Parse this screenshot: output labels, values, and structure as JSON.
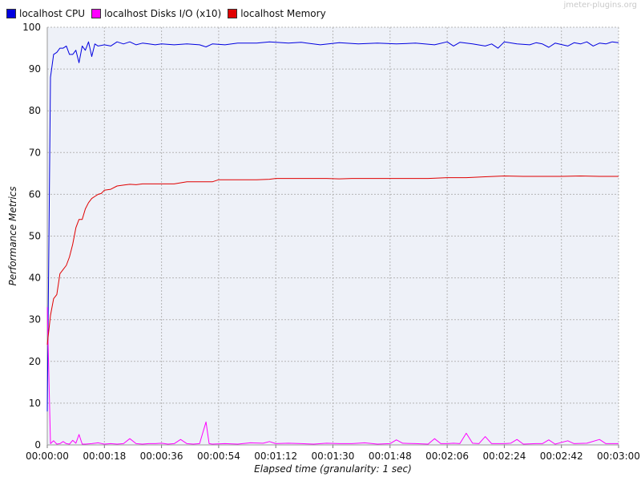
{
  "watermark": "jmeter-plugins.org",
  "colors": {
    "background": "#eef1f8",
    "grid": "#b5b5b5",
    "cpu": "#0000e0",
    "disks": "#ff00ff",
    "memory": "#e00000"
  },
  "legend": [
    {
      "label": "localhost CPU",
      "color": "#0000e0"
    },
    {
      "label": "localhost Disks I/O (x10)",
      "color": "#ff00ff"
    },
    {
      "label": "localhost Memory",
      "color": "#e00000"
    }
  ],
  "chart_data": {
    "type": "line",
    "title": "",
    "xlabel": "Elapsed time (granularity: 1 sec)",
    "ylabel": "Performance Metrics",
    "xlim": [
      0,
      180
    ],
    "ylim": [
      0,
      100
    ],
    "grid": true,
    "legend_position": "top-left",
    "x_tick_labels": [
      "00:00:00",
      "00:00:18",
      "00:00:36",
      "00:00:54",
      "00:01:12",
      "00:01:30",
      "00:01:48",
      "00:02:06",
      "00:02:24",
      "00:02:42",
      "00:03:00"
    ],
    "x_tick_values": [
      0,
      18,
      36,
      54,
      72,
      90,
      108,
      126,
      144,
      162,
      180
    ],
    "y_tick_values": [
      0,
      10,
      20,
      30,
      40,
      50,
      60,
      70,
      80,
      90,
      100
    ],
    "series": [
      {
        "name": "localhost CPU",
        "color": "#0000e0",
        "points": [
          [
            0,
            8
          ],
          [
            1,
            88
          ],
          [
            2,
            93.5
          ],
          [
            3,
            94
          ],
          [
            4,
            95
          ],
          [
            5,
            95
          ],
          [
            6,
            95.5
          ],
          [
            7,
            93.5
          ],
          [
            8,
            93.5
          ],
          [
            9,
            94.5
          ],
          [
            10,
            91.5
          ],
          [
            11,
            95.5
          ],
          [
            12,
            94.5
          ],
          [
            13,
            96.5
          ],
          [
            14,
            93
          ],
          [
            15,
            96
          ],
          [
            16,
            95.5
          ],
          [
            18,
            95.8
          ],
          [
            20,
            95.5
          ],
          [
            22,
            96.5
          ],
          [
            24,
            96
          ],
          [
            26,
            96.5
          ],
          [
            28,
            95.8
          ],
          [
            30,
            96.2
          ],
          [
            32,
            96
          ],
          [
            34,
            95.8
          ],
          [
            36,
            96
          ],
          [
            40,
            95.8
          ],
          [
            44,
            96
          ],
          [
            48,
            95.8
          ],
          [
            50,
            95.3
          ],
          [
            52,
            96
          ],
          [
            56,
            95.8
          ],
          [
            60,
            96.2
          ],
          [
            66,
            96.2
          ],
          [
            70,
            96.5
          ],
          [
            76,
            96.2
          ],
          [
            80,
            96.4
          ],
          [
            86,
            95.8
          ],
          [
            92,
            96.3
          ],
          [
            98,
            96
          ],
          [
            104,
            96.2
          ],
          [
            110,
            96
          ],
          [
            116,
            96.2
          ],
          [
            122,
            95.8
          ],
          [
            126,
            96.5
          ],
          [
            128,
            95.5
          ],
          [
            130,
            96.4
          ],
          [
            134,
            96
          ],
          [
            138,
            95.5
          ],
          [
            140,
            96
          ],
          [
            142,
            95
          ],
          [
            144,
            96.5
          ],
          [
            148,
            96
          ],
          [
            152,
            95.8
          ],
          [
            154,
            96.3
          ],
          [
            156,
            96
          ],
          [
            158,
            95.2
          ],
          [
            160,
            96.2
          ],
          [
            164,
            95.5
          ],
          [
            166,
            96.3
          ],
          [
            168,
            96
          ],
          [
            170,
            96.5
          ],
          [
            172,
            95.5
          ],
          [
            174,
            96.2
          ],
          [
            176,
            96
          ],
          [
            178,
            96.5
          ],
          [
            180,
            96.3
          ]
        ]
      },
      {
        "name": "localhost Disks I/O (x10)",
        "color": "#ff00ff",
        "points": [
          [
            0,
            33
          ],
          [
            1,
            0.3
          ],
          [
            2,
            1
          ],
          [
            3,
            0.2
          ],
          [
            4,
            0.3
          ],
          [
            5,
            0.8
          ],
          [
            6,
            0.3
          ],
          [
            7,
            0.2
          ],
          [
            8,
            1.1
          ],
          [
            9,
            0.4
          ],
          [
            10,
            2.5
          ],
          [
            11,
            0.2
          ],
          [
            12,
            0.2
          ],
          [
            14,
            0.3
          ],
          [
            16,
            0.5
          ],
          [
            18,
            0.2
          ],
          [
            20,
            0.3
          ],
          [
            22,
            0.2
          ],
          [
            24,
            0.3
          ],
          [
            26,
            1.5
          ],
          [
            28,
            0.3
          ],
          [
            30,
            0.2
          ],
          [
            32,
            0.3
          ],
          [
            34,
            0.3
          ],
          [
            36,
            0.4
          ],
          [
            38,
            0.2
          ],
          [
            40,
            0.3
          ],
          [
            42,
            1.3
          ],
          [
            44,
            0.3
          ],
          [
            46,
            0.2
          ],
          [
            48,
            0.3
          ],
          [
            50,
            5.5
          ],
          [
            51,
            0.3
          ],
          [
            52,
            0.2
          ],
          [
            56,
            0.3
          ],
          [
            60,
            0.2
          ],
          [
            64,
            0.5
          ],
          [
            68,
            0.4
          ],
          [
            70,
            0.8
          ],
          [
            72,
            0.3
          ],
          [
            76,
            0.4
          ],
          [
            80,
            0.3
          ],
          [
            84,
            0.2
          ],
          [
            88,
            0.4
          ],
          [
            92,
            0.3
          ],
          [
            96,
            0.3
          ],
          [
            100,
            0.5
          ],
          [
            104,
            0.2
          ],
          [
            108,
            0.3
          ],
          [
            110,
            1.2
          ],
          [
            112,
            0.4
          ],
          [
            116,
            0.3
          ],
          [
            120,
            0.2
          ],
          [
            122,
            1.5
          ],
          [
            124,
            0.3
          ],
          [
            126,
            0.3
          ],
          [
            128,
            0.4
          ],
          [
            130,
            0.3
          ],
          [
            132,
            2.8
          ],
          [
            134,
            0.4
          ],
          [
            136,
            0.3
          ],
          [
            138,
            2
          ],
          [
            140,
            0.3
          ],
          [
            144,
            0.3
          ],
          [
            146,
            0.4
          ],
          [
            148,
            1.3
          ],
          [
            150,
            0.2
          ],
          [
            154,
            0.3
          ],
          [
            156,
            0.3
          ],
          [
            158,
            1.2
          ],
          [
            160,
            0.2
          ],
          [
            164,
            1
          ],
          [
            166,
            0.3
          ],
          [
            170,
            0.4
          ],
          [
            174,
            1.3
          ],
          [
            176,
            0.3
          ],
          [
            180,
            0.3
          ]
        ]
      },
      {
        "name": "localhost Memory",
        "color": "#e00000",
        "points": [
          [
            0,
            24
          ],
          [
            1,
            31
          ],
          [
            2,
            35
          ],
          [
            3,
            36
          ],
          [
            4,
            41
          ],
          [
            5,
            42
          ],
          [
            6,
            43
          ],
          [
            7,
            45
          ],
          [
            8,
            48
          ],
          [
            9,
            52
          ],
          [
            10,
            54
          ],
          [
            11,
            54
          ],
          [
            12,
            56.5
          ],
          [
            13,
            58
          ],
          [
            14,
            59
          ],
          [
            15,
            59.5
          ],
          [
            16,
            60
          ],
          [
            17,
            60.2
          ],
          [
            18,
            61
          ],
          [
            20,
            61.2
          ],
          [
            22,
            62
          ],
          [
            24,
            62.2
          ],
          [
            26,
            62.4
          ],
          [
            28,
            62.3
          ],
          [
            30,
            62.5
          ],
          [
            32,
            62.5
          ],
          [
            36,
            62.5
          ],
          [
            40,
            62.5
          ],
          [
            44,
            63
          ],
          [
            48,
            63
          ],
          [
            52,
            63
          ],
          [
            54,
            63.5
          ],
          [
            58,
            63.5
          ],
          [
            64,
            63.5
          ],
          [
            66,
            63.5
          ],
          [
            70,
            63.6
          ],
          [
            72,
            63.8
          ],
          [
            76,
            63.8
          ],
          [
            80,
            63.8
          ],
          [
            84,
            63.8
          ],
          [
            88,
            63.8
          ],
          [
            92,
            63.7
          ],
          [
            96,
            63.8
          ],
          [
            100,
            63.8
          ],
          [
            110,
            63.8
          ],
          [
            120,
            63.8
          ],
          [
            126,
            64
          ],
          [
            132,
            64
          ],
          [
            138,
            64.2
          ],
          [
            144,
            64.4
          ],
          [
            150,
            64.3
          ],
          [
            156,
            64.3
          ],
          [
            162,
            64.3
          ],
          [
            168,
            64.4
          ],
          [
            174,
            64.3
          ],
          [
            180,
            64.3
          ]
        ]
      }
    ]
  }
}
